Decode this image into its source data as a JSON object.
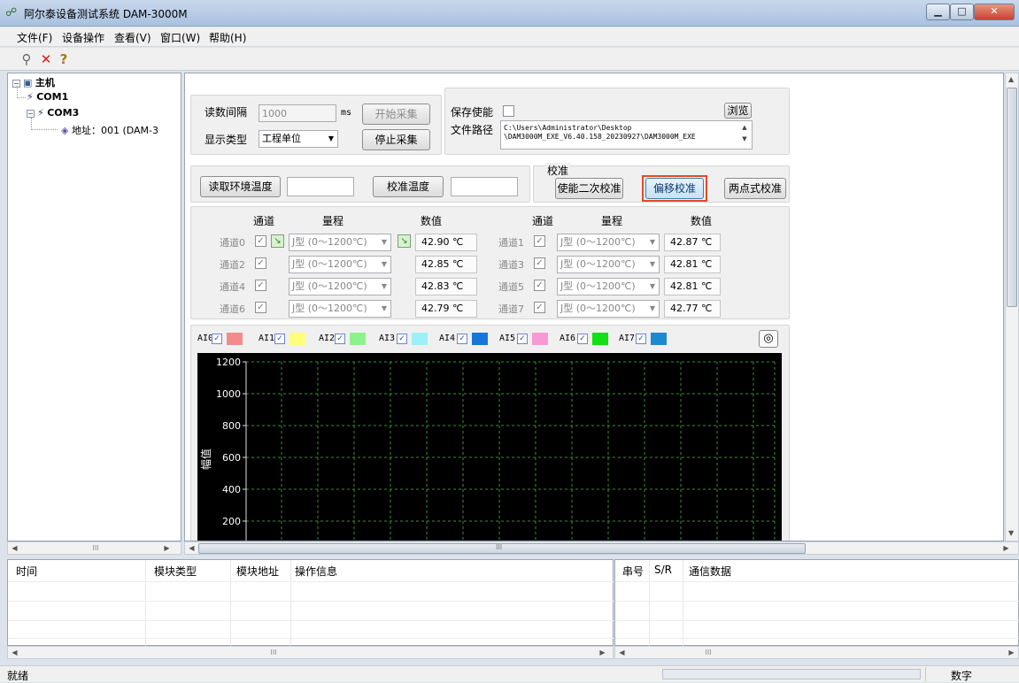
{
  "window": {
    "title": "阿尔泰设备测试系统 DAM-3000M"
  },
  "menu": [
    "文件(F)",
    "设备操作",
    "查看(V)",
    "窗口(W)",
    "帮助(H)"
  ],
  "toolbar": {
    "icons": [
      "search-icon",
      "delete-x-icon",
      "help-icon"
    ]
  },
  "tree": {
    "root": "主机",
    "com1": "COM1",
    "com3": "COM3",
    "address": "地址：001 (DAM-3"
  },
  "acquisition": {
    "interval_label": "读数间隔",
    "interval_value": "1000",
    "interval_unit": "ms",
    "start_button": "开始采集",
    "display_type_label": "显示类型",
    "display_type_value": "工程单位",
    "stop_button": "停止采集"
  },
  "save": {
    "enable_label": "保存使能",
    "browse_button": "浏览",
    "path_label": "文件路径",
    "path_line1": "C:\\Users\\Administrator\\Desktop",
    "path_line2": "\\DAM3000M_EXE_V6.40.158_20230927\\DAM3000M_EXE"
  },
  "temperature": {
    "read_button": "读取环境温度",
    "read_value": "",
    "calibrate_button": "校准温度",
    "calibrate_value": ""
  },
  "calibration": {
    "title": "校准",
    "enable_secondary": "使能二次校准",
    "offset": "偏移校准",
    "two_point": "两点式校准"
  },
  "channels": {
    "headers": {
      "channel": "通道",
      "range": "量程",
      "value": "数值"
    },
    "rows": [
      {
        "name": "通道0",
        "range": "J型 (0～1200℃)",
        "value": "42.90 ℃"
      },
      {
        "name": "通道1",
        "range": "J型 (0～1200℃)",
        "value": "42.87 ℃"
      },
      {
        "name": "通道2",
        "range": "J型 (0～1200℃)",
        "value": "42.85 ℃"
      },
      {
        "name": "通道3",
        "range": "J型 (0～1200℃)",
        "value": "42.81 ℃"
      },
      {
        "name": "通道4",
        "range": "J型 (0～1200℃)",
        "value": "42.83 ℃"
      },
      {
        "name": "通道5",
        "range": "J型 (0～1200℃)",
        "value": "42.81 ℃"
      },
      {
        "name": "通道6",
        "range": "J型 (0～1200℃)",
        "value": "42.79 ℃"
      },
      {
        "name": "通道7",
        "range": "J型 (0～1200℃)",
        "value": "42.77 ℃"
      }
    ]
  },
  "legend": [
    {
      "label": "AI0",
      "color": "#f28b8b"
    },
    {
      "label": "AI1",
      "color": "#ffff7a"
    },
    {
      "label": "AI2",
      "color": "#8df28d"
    },
    {
      "label": "AI3",
      "color": "#9ef0f7"
    },
    {
      "label": "AI4",
      "color": "#1976d8"
    },
    {
      "label": "AI5",
      "color": "#f69ad6"
    },
    {
      "label": "AI6",
      "color": "#12e012"
    },
    {
      "label": "AI7",
      "color": "#1c8ad0"
    }
  ],
  "plot": {
    "ylabel": "幅值",
    "yticks": [
      "1200",
      "1000",
      "800",
      "600",
      "400",
      "200"
    ]
  },
  "log_left": {
    "columns": [
      "时间",
      "模块类型",
      "模块地址",
      "操作信息"
    ]
  },
  "log_right": {
    "columns": [
      "串号",
      "S/R",
      "通信数据"
    ]
  },
  "status": {
    "left": "就绪",
    "right": "数字"
  },
  "scroll": {
    "mark": "III"
  }
}
